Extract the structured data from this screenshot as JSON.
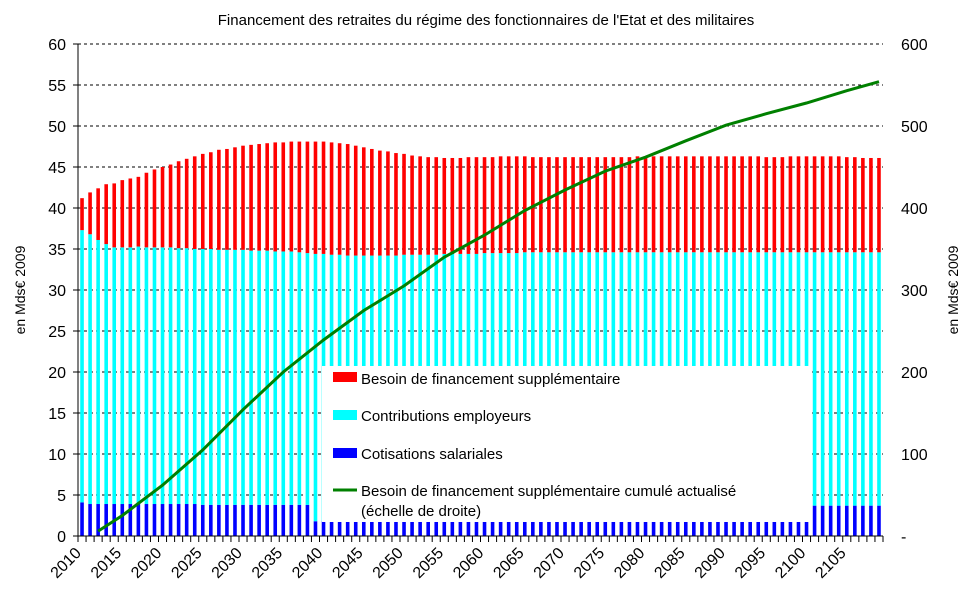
{
  "chart_data": {
    "type": "bar",
    "stacked": true,
    "title": "Financement des retraites du régime des fonctionnaires de l'Etat et des militaires",
    "ylabel": "en Mds€ 2009",
    "ylabel_right": "en Mds€ 2009",
    "ylim": [
      0,
      60
    ],
    "ylim_right": [
      0,
      600
    ],
    "yticks": [
      "0",
      "5",
      "10",
      "15",
      "20",
      "25",
      "30",
      "35",
      "40",
      "45",
      "50",
      "55",
      "60"
    ],
    "yticks_right": [
      "-",
      "100",
      "200",
      "300",
      "400",
      "500",
      "600"
    ],
    "x_start": 2010,
    "x_end": 2109,
    "xticks": [
      "2010",
      "2015",
      "2020",
      "2025",
      "2030",
      "2035",
      "2040",
      "2045",
      "2050",
      "2055",
      "2060",
      "2065",
      "2070",
      "2075",
      "2080",
      "2085",
      "2090",
      "2095",
      "2100",
      "2105"
    ],
    "grid": true,
    "legend_placement": "bottom-center inside",
    "series": [
      {
        "name": "Cotisations salariales",
        "color": "#0000ff",
        "values": [
          4.1,
          3.9,
          3.9,
          3.9,
          3.9,
          3.9,
          3.9,
          3.9,
          3.9,
          3.9,
          3.9,
          3.9,
          3.9,
          3.9,
          3.9,
          3.8,
          3.8,
          3.8,
          3.8,
          3.8,
          3.8,
          3.8,
          3.8,
          3.8,
          3.8,
          3.8,
          3.8,
          3.8,
          3.8,
          1.8,
          1.8,
          1.8,
          1.8,
          1.8,
          1.8,
          1.8,
          1.8,
          1.8,
          1.8,
          1.8,
          1.8,
          1.8,
          1.8,
          1.8,
          1.8,
          1.8,
          1.8,
          1.8,
          1.8,
          1.8,
          1.8,
          1.8,
          1.8,
          1.8,
          1.8,
          1.8,
          1.8,
          1.8,
          1.8,
          1.8,
          1.8,
          1.8,
          1.8,
          1.8,
          1.8,
          1.8,
          1.8,
          1.8,
          1.8,
          1.8,
          1.8,
          1.8,
          1.8,
          1.8,
          1.8,
          1.8,
          1.8,
          1.8,
          1.8,
          1.8,
          1.8,
          1.8,
          1.8,
          1.8,
          1.8,
          1.8,
          1.8,
          1.8,
          1.8,
          1.8,
          1.8,
          3.7,
          3.7,
          3.7,
          3.7,
          3.7,
          3.7,
          3.7,
          3.7,
          3.7
        ]
      },
      {
        "name": "Contributions employeurs",
        "color": "#00ffff",
        "values": [
          33.2,
          32.9,
          32.2,
          31.7,
          31.3,
          31.3,
          31.3,
          31.4,
          31.3,
          31.3,
          31.3,
          31.3,
          31.2,
          31.2,
          31.1,
          31.2,
          31.2,
          31.1,
          31.1,
          31.1,
          31.1,
          31.0,
          31.0,
          31.0,
          30.9,
          30.9,
          30.9,
          30.8,
          30.7,
          32.6,
          32.6,
          32.5,
          32.5,
          32.4,
          32.4,
          32.4,
          32.4,
          32.4,
          32.4,
          32.4,
          32.5,
          32.5,
          32.5,
          32.5,
          32.5,
          32.6,
          32.6,
          32.6,
          32.6,
          32.6,
          32.7,
          32.7,
          32.7,
          32.7,
          32.7,
          32.8,
          32.8,
          32.8,
          32.8,
          32.8,
          32.8,
          32.8,
          32.8,
          32.8,
          32.8,
          32.8,
          32.8,
          32.8,
          32.8,
          32.8,
          32.8,
          32.8,
          32.8,
          32.8,
          32.8,
          32.8,
          32.8,
          32.8,
          32.8,
          32.8,
          32.8,
          32.8,
          32.8,
          32.8,
          32.8,
          32.8,
          32.8,
          32.8,
          32.8,
          32.8,
          32.8,
          30.9,
          30.9,
          30.9,
          30.9,
          30.9,
          30.9,
          30.9,
          30.9,
          30.9
        ]
      },
      {
        "name": "Besoin de financement supplémentaire",
        "color": "#ff0000",
        "values": [
          3.9,
          5.1,
          6.3,
          7.3,
          7.8,
          8.2,
          8.4,
          8.5,
          9.1,
          9.5,
          9.8,
          10.1,
          10.6,
          10.9,
          11.3,
          11.6,
          11.8,
          12.2,
          12.3,
          12.5,
          12.7,
          12.9,
          13.0,
          13.1,
          13.3,
          13.3,
          13.4,
          13.5,
          13.6,
          13.7,
          13.7,
          13.7,
          13.6,
          13.6,
          13.4,
          13.2,
          13.0,
          12.8,
          12.7,
          12.5,
          12.3,
          12.1,
          12.0,
          11.9,
          11.9,
          11.7,
          11.7,
          11.7,
          11.8,
          11.8,
          11.7,
          11.7,
          11.8,
          11.8,
          11.8,
          11.7,
          11.6,
          11.6,
          11.6,
          11.6,
          11.6,
          11.6,
          11.6,
          11.6,
          11.6,
          11.6,
          11.6,
          11.6,
          11.6,
          11.7,
          11.7,
          11.7,
          11.7,
          11.7,
          11.7,
          11.7,
          11.7,
          11.7,
          11.7,
          11.7,
          11.7,
          11.7,
          11.7,
          11.7,
          11.7,
          11.6,
          11.6,
          11.6,
          11.7,
          11.7,
          11.7,
          11.7,
          11.7,
          11.7,
          11.7,
          11.6,
          11.6,
          11.5,
          11.5,
          11.5
        ]
      }
    ],
    "line": {
      "name": "Besoin de financement supplémentaire cumulé actualisé",
      "name_line2": "(échelle de droite)",
      "axis": "right",
      "color": "#008000",
      "x": [
        2012,
        2015,
        2020,
        2025,
        2030,
        2035,
        2040,
        2045,
        2050,
        2055,
        2060,
        2065,
        2070,
        2075,
        2080,
        2085,
        2090,
        2095,
        2100,
        2105,
        2109
      ],
      "y": [
        6,
        25,
        62,
        105,
        154,
        200,
        239,
        275,
        305,
        340,
        367,
        397,
        422,
        445,
        462,
        482,
        501,
        515,
        528,
        543,
        554
      ]
    }
  }
}
